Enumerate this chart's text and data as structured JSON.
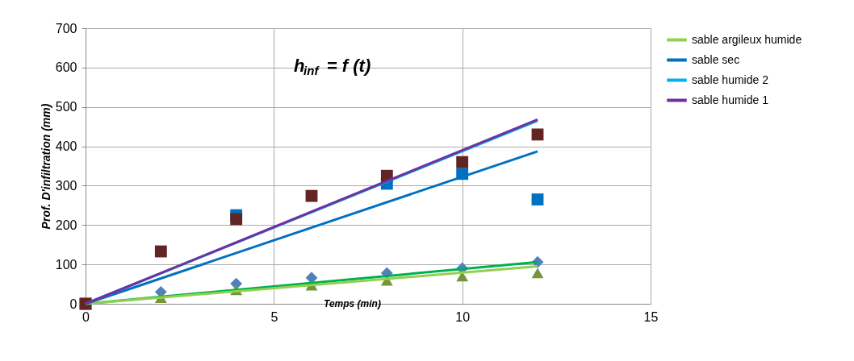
{
  "chart_data": {
    "type": "line",
    "title": "h$_{inf}$ = f (t)",
    "xlabel": "Temps (min)",
    "ylabel": "Prof. D'infiltration (mm)",
    "xlim": [
      0,
      15
    ],
    "xticks": [
      0,
      5,
      10,
      15
    ],
    "ylim": [
      0,
      700
    ],
    "yticks": [
      0,
      100,
      200,
      300,
      400,
      500,
      600,
      700
    ],
    "grid": true,
    "legend": "right",
    "line_style": "solid",
    "series": [
      {
        "type": "scatter",
        "marker": "diamond",
        "color": "#4f81bd",
        "x": [
          2,
          4,
          6,
          8,
          10,
          12
        ],
        "values": [
          30,
          51,
          66,
          78,
          90,
          106
        ]
      },
      {
        "type": "scatter",
        "marker": "triangle",
        "color": "#77933c",
        "x": [
          2,
          4,
          6,
          8,
          10,
          12
        ],
        "values": [
          15,
          35,
          47,
          59,
          70,
          78
        ]
      },
      {
        "type": "scatter",
        "marker": "square",
        "color": "#0070c0",
        "x": [
          0,
          2,
          4,
          6,
          8,
          10,
          12
        ],
        "values": [
          0,
          null,
          225,
          null,
          305,
          330,
          265
        ]
      },
      {
        "type": "scatter",
        "marker": "square",
        "color": "#632523",
        "x": [
          0,
          2,
          4,
          6,
          8,
          10,
          12
        ],
        "values": [
          0,
          133,
          215,
          274,
          325,
          360,
          430
        ]
      },
      {
        "type": "line",
        "color": "#00b050",
        "x": [
          0,
          12
        ],
        "values": [
          0,
          106
        ]
      },
      {
        "type": "line",
        "name": "sable argileux humide",
        "color": "#92d050",
        "x": [
          0,
          12
        ],
        "values": [
          0,
          95
        ]
      },
      {
        "type": "line",
        "name": "sable sec",
        "color": "#0070c0",
        "x": [
          0,
          12
        ],
        "values": [
          0,
          387
        ]
      },
      {
        "type": "line",
        "name": "sable humide 2",
        "color": "#00b0f0",
        "x": [
          0,
          12
        ],
        "values": [
          0,
          465
        ]
      },
      {
        "type": "line",
        "name": "sable humide 1",
        "color": "#7030a0",
        "x": [
          0,
          12
        ],
        "values": [
          0,
          468
        ]
      }
    ]
  }
}
